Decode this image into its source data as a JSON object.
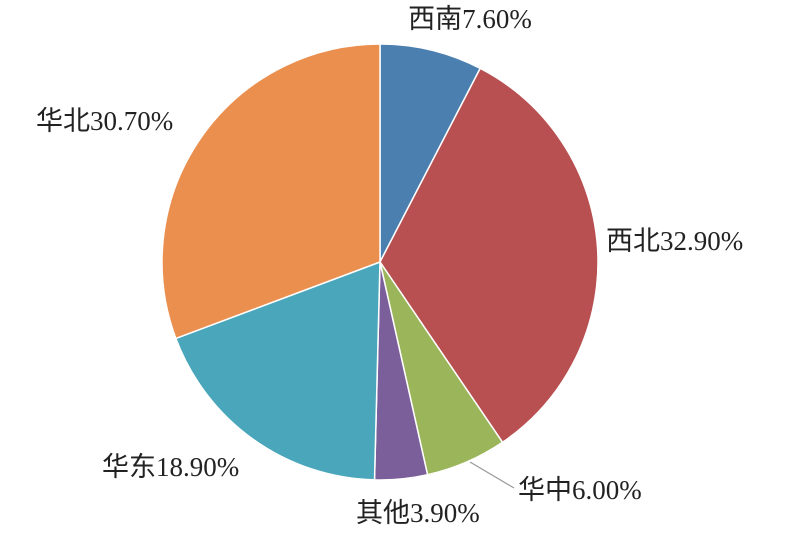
{
  "chart_data": {
    "type": "pie",
    "categories": [
      "西南",
      "西北",
      "华中",
      "其他",
      "华东",
      "华北"
    ],
    "values": [
      7.6,
      32.9,
      6.0,
      3.9,
      18.9,
      30.7
    ],
    "value_labels": [
      "7.60%",
      "32.90%",
      "6.00%",
      "3.90%",
      "18.90%",
      "30.70%"
    ],
    "colors": [
      "#4a7fb0",
      "#b84f50",
      "#9bb55a",
      "#7b5f9a",
      "#4aa6ba",
      "#eb8f4f"
    ]
  }
}
